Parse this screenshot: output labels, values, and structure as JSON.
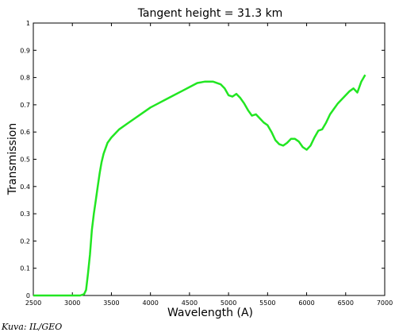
{
  "credit": "Kuva: IL/GEO",
  "chart_data": {
    "type": "line",
    "title": "Tangent height = 31.3 km",
    "xlabel": "Wavelength (A)",
    "ylabel": "Transmission",
    "xlim": [
      2500,
      7000
    ],
    "ylim": [
      0,
      1
    ],
    "xticks": [
      2500,
      3000,
      3500,
      4000,
      4500,
      5000,
      5500,
      6000,
      6500,
      7000
    ],
    "xtick_labels": [
      "2500",
      "3000",
      "3500",
      "4000",
      "4500",
      "5000",
      "5500",
      "6000",
      "6500",
      "7000"
    ],
    "yticks": [
      0,
      0.1,
      0.2,
      0.3,
      0.4,
      0.5,
      0.6,
      0.7,
      0.8,
      0.9,
      1
    ],
    "ytick_labels": [
      "0",
      "0.1",
      "0.2",
      "0.3",
      "0.4",
      "0.5",
      "0.6",
      "0.7",
      "0.8",
      "0.9",
      "1"
    ],
    "grid": false,
    "series_color": "#22e622",
    "series": [
      {
        "x": [
          2500,
          3000,
          3100,
          3150,
          3175,
          3200,
          3225,
          3250,
          3275,
          3300,
          3325,
          3350,
          3375,
          3400,
          3450,
          3500,
          3600,
          3700,
          3800,
          3900,
          4000,
          4100,
          4200,
          4300,
          4400,
          4500,
          4600,
          4700,
          4800,
          4900,
          4950,
          5000,
          5050,
          5100,
          5150,
          5200,
          5250,
          5300,
          5350,
          5400,
          5450,
          5500,
          5550,
          5600,
          5650,
          5700,
          5750,
          5800,
          5850,
          5900,
          5950,
          6000,
          6050,
          6100,
          6150,
          6200,
          6250,
          6300,
          6350,
          6400,
          6450,
          6500,
          6550,
          6600,
          6650,
          6700,
          6750
        ],
        "y": [
          0,
          0,
          0,
          0.005,
          0.02,
          0.08,
          0.15,
          0.24,
          0.3,
          0.35,
          0.4,
          0.45,
          0.49,
          0.52,
          0.56,
          0.58,
          0.61,
          0.63,
          0.65,
          0.67,
          0.69,
          0.705,
          0.72,
          0.735,
          0.75,
          0.765,
          0.78,
          0.785,
          0.785,
          0.775,
          0.76,
          0.735,
          0.73,
          0.74,
          0.725,
          0.705,
          0.68,
          0.66,
          0.665,
          0.65,
          0.635,
          0.625,
          0.6,
          0.57,
          0.555,
          0.55,
          0.56,
          0.575,
          0.575,
          0.565,
          0.545,
          0.535,
          0.55,
          0.58,
          0.605,
          0.61,
          0.635,
          0.665,
          0.685,
          0.705,
          0.72,
          0.735,
          0.75,
          0.76,
          0.745,
          0.785,
          0.81
        ]
      }
    ]
  }
}
